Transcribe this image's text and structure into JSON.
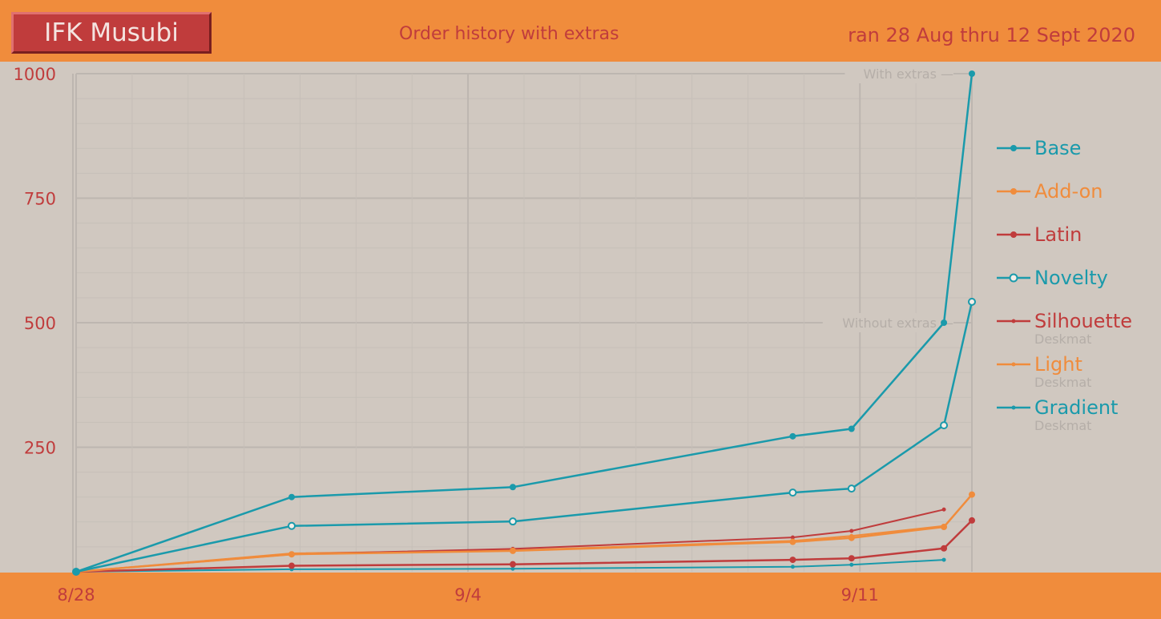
{
  "header": {
    "logo": "IFK Musubi",
    "subtitle": "Order history with extras",
    "date_range": "ran 28 Aug thru 12 Sept 2020"
  },
  "colors": {
    "teal": "#1a9aab",
    "orange": "#f08c3c",
    "red": "#c03c3c",
    "muted": "#b5aea8"
  },
  "chart_data": {
    "type": "line",
    "title": "Order history with extras",
    "ylim": [
      0,
      1000
    ],
    "y_ticks": [
      "1000",
      "750",
      "500",
      "250"
    ],
    "x_range_days": [
      0,
      16
    ],
    "x_ticks": [
      {
        "label": "8/28",
        "day": 0
      },
      {
        "label": "9/4",
        "day": 7
      },
      {
        "label": "9/11",
        "day": 14
      }
    ],
    "annotations": [
      {
        "text": "With extras —",
        "y": 1000
      },
      {
        "text": "Without extras —",
        "y": 500
      }
    ],
    "legend_position": "right",
    "series": [
      {
        "name": "Base",
        "color": "#1a9aab",
        "marker": "filled",
        "x": [
          0,
          3.85,
          7.8,
          12.8,
          13.85,
          15.5,
          16
        ],
        "y": [
          0,
          150,
          170,
          272,
          287,
          500,
          1000
        ]
      },
      {
        "name": "Add-on",
        "color": "#f08c3c",
        "marker": "filled",
        "x": [
          0,
          3.85,
          7.8,
          12.8,
          13.85,
          15.5,
          16
        ],
        "y": [
          0,
          35,
          42,
          60,
          68,
          90,
          155
        ]
      },
      {
        "name": "Latin",
        "color": "#c03c3c",
        "marker": "filled",
        "x": [
          0,
          3.85,
          7.8,
          12.8,
          13.85,
          15.5,
          16
        ],
        "y": [
          0,
          12,
          15,
          24,
          27,
          47,
          103
        ]
      },
      {
        "name": "Novelty",
        "color": "#1a9aab",
        "marker": "hollow",
        "x": [
          0,
          3.85,
          7.8,
          12.8,
          13.85,
          15.5,
          16
        ],
        "y": [
          0,
          92,
          101,
          159,
          167,
          294,
          542
        ]
      },
      {
        "name": "Silhouette",
        "sub": "Deskmat",
        "color": "#c03c3c",
        "marker": "small",
        "x": [
          0,
          3.85,
          7.8,
          12.8,
          13.85,
          15.5
        ],
        "y": [
          0,
          35,
          46,
          69,
          82,
          125
        ]
      },
      {
        "name": "Light",
        "sub": "Deskmat",
        "color": "#f08c3c",
        "marker": "small",
        "x": [
          0,
          3.85,
          7.8,
          12.8,
          13.85,
          15.5
        ],
        "y": [
          0,
          37,
          43,
          62,
          72,
          92
        ]
      },
      {
        "name": "Gradient",
        "sub": "Deskmat",
        "color": "#1a9aab",
        "marker": "small",
        "x": [
          0,
          3.85,
          7.8,
          12.8,
          13.85,
          15.5
        ],
        "y": [
          0,
          5,
          6,
          10,
          14,
          24
        ]
      }
    ]
  }
}
